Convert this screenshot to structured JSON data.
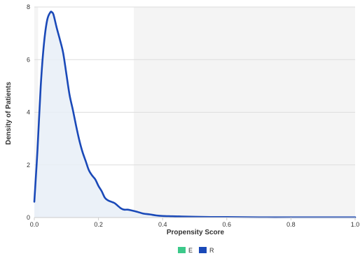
{
  "chart_data": {
    "type": "area",
    "title": "",
    "xlabel": "Propensity Score",
    "ylabel": "Density of Patients",
    "xlim": [
      0.0,
      1.0
    ],
    "ylim": [
      0,
      8
    ],
    "x_ticks": [
      "0.0",
      "0.2",
      "0.4",
      "0.6",
      "0.8",
      "1.0"
    ],
    "y_ticks": [
      "0",
      "2",
      "4",
      "6",
      "8"
    ],
    "grid": true,
    "legend_position": "bottom-center",
    "legend": [
      {
        "label": "E",
        "color": "#3cc98a"
      },
      {
        "label": "R",
        "color": "#1a49b8"
      }
    ],
    "shaded_regions": [
      {
        "x_start": 0.0,
        "x_end": 0.012,
        "color": "#f4f4f4"
      },
      {
        "x_start": 0.31,
        "x_end": 1.0,
        "color": "#f4f4f4"
      }
    ],
    "series": [
      {
        "name": "R",
        "color": "#1a49b8",
        "fill": "#e7eff7",
        "x": [
          0.0,
          0.01,
          0.02,
          0.03,
          0.04,
          0.05,
          0.055,
          0.06,
          0.07,
          0.08,
          0.09,
          0.1,
          0.11,
          0.12,
          0.13,
          0.14,
          0.15,
          0.16,
          0.17,
          0.18,
          0.19,
          0.2,
          0.21,
          0.22,
          0.23,
          0.24,
          0.25,
          0.26,
          0.27,
          0.28,
          0.29,
          0.3,
          0.32,
          0.34,
          0.36,
          0.38,
          0.4,
          0.43,
          0.46,
          0.5,
          0.55,
          0.6,
          0.7,
          0.8,
          0.9,
          1.0
        ],
        "values": [
          0.6,
          2.6,
          5.0,
          6.6,
          7.5,
          7.8,
          7.8,
          7.7,
          7.2,
          6.75,
          6.25,
          5.45,
          4.65,
          4.1,
          3.5,
          2.95,
          2.5,
          2.15,
          1.8,
          1.6,
          1.45,
          1.2,
          1.0,
          0.75,
          0.65,
          0.6,
          0.55,
          0.45,
          0.35,
          0.3,
          0.3,
          0.28,
          0.22,
          0.15,
          0.12,
          0.08,
          0.06,
          0.05,
          0.04,
          0.03,
          0.02,
          0.02,
          0.01,
          0.01,
          0.01,
          0.01
        ]
      }
    ]
  }
}
